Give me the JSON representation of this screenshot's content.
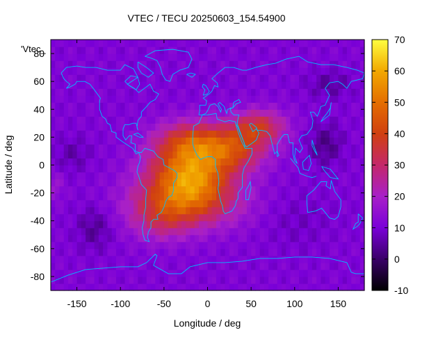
{
  "chart_data": {
    "type": "heatmap",
    "title": "VTEC / TECU 20250603_154.54900",
    "xlabel": "Longitude / deg",
    "ylabel": "Latitude / deg",
    "series_key_label": "'Vtec_",
    "xlim": [
      -180,
      180
    ],
    "ylim": [
      -90,
      90
    ],
    "x_ticks": [
      -150,
      -100,
      -50,
      0,
      50,
      100,
      150
    ],
    "y_ticks": [
      -80,
      -60,
      -40,
      -20,
      0,
      20,
      40,
      60,
      80
    ],
    "colorbar": {
      "range": [
        -10,
        70
      ],
      "ticks": [
        -10,
        0,
        10,
        20,
        30,
        40,
        50,
        60,
        70
      ],
      "palette": [
        "#000000",
        "#3a0068",
        "#7a00d8",
        "#a820c8",
        "#c4286a",
        "#d04010",
        "#e46e00",
        "#f2a800",
        "#ffff40"
      ]
    },
    "grid_resolution_deg": [
      5,
      5
    ],
    "field_features": {
      "background_tecu": 11,
      "peak": {
        "lon": -20,
        "lat": -5,
        "tecu": 66
      },
      "equatorial_anomaly_crest": {
        "lon": -25,
        "lat": 15,
        "tecu": 52
      },
      "tail_east": {
        "lon": 55,
        "lat": 25,
        "tecu": 40
      },
      "low_regions": [
        {
          "lon": -130,
          "lat": -45,
          "tecu": 4
        },
        {
          "lon": 135,
          "lat": 15,
          "tecu": 3
        },
        {
          "lon": 140,
          "lat": 58,
          "tecu": 5
        },
        {
          "lon": -155,
          "lat": 8,
          "tecu": 6
        }
      ]
    },
    "coastline_color": "#00bfff",
    "grid": false,
    "legend": "colorbar-right"
  }
}
